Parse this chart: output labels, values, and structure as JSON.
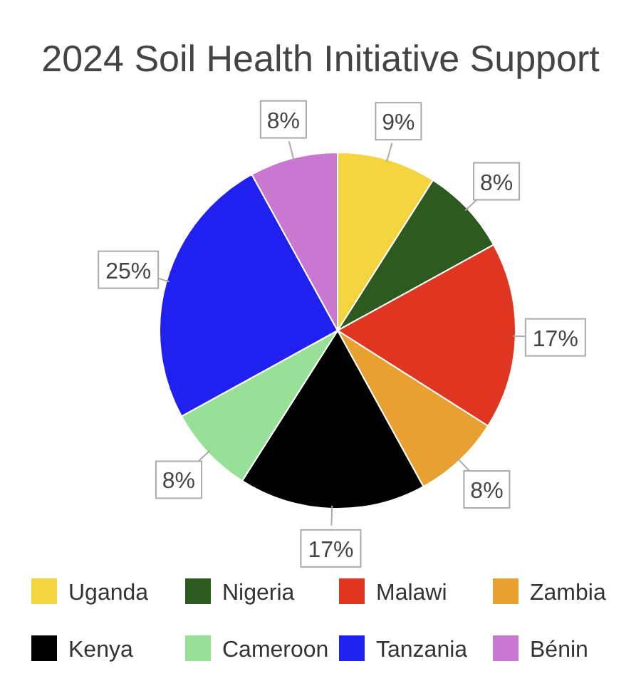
{
  "chart_data": {
    "type": "pie",
    "title": "2024 Soil Health Initiative Support",
    "categories": [
      "Uganda",
      "Nigeria",
      "Malawi",
      "Zambia",
      "Kenya",
      "Cameroon",
      "Tanzania",
      "Bénin"
    ],
    "values": [
      9,
      8,
      17,
      8,
      17,
      8,
      25,
      8
    ],
    "value_labels": [
      "9%",
      "8%",
      "17%",
      "8%",
      "17%",
      "8%",
      "25%",
      "8%"
    ],
    "colors": [
      "#f2d43e",
      "#2d5a1e",
      "#e03520",
      "#e8a030",
      "#000000",
      "#98e098",
      "#2020f0",
      "#c878d0"
    ],
    "legend": "bottom"
  }
}
